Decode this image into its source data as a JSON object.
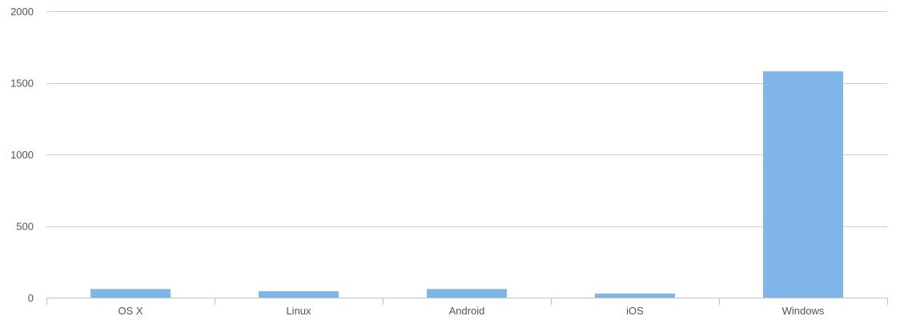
{
  "chart_data": {
    "type": "bar",
    "title": "",
    "xlabel": "",
    "ylabel": "",
    "categories": [
      "OS X",
      "Linux",
      "Android",
      "iOS",
      "Windows"
    ],
    "values": [
      60,
      45,
      60,
      28,
      1580
    ],
    "ylim": [
      0,
      2000
    ],
    "yticks": [
      "0",
      "500",
      "1000",
      "1500",
      "2000"
    ],
    "ytick_values": [
      0,
      500,
      1000,
      1500,
      2000
    ],
    "grid": true,
    "legend": "none",
    "colors": {
      "bar": "#7fb5e8",
      "grid": "#c8ced6",
      "axis": "#b8c4d0",
      "text": "#555555"
    }
  }
}
